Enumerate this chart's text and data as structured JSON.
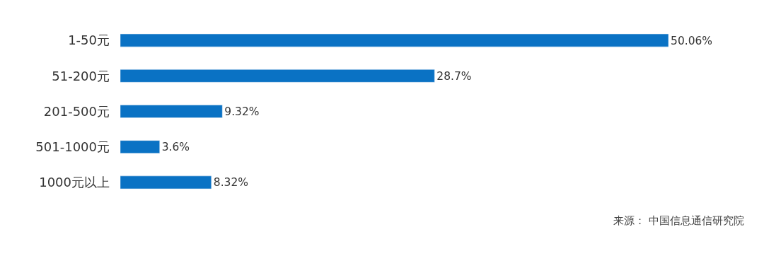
{
  "chart_data": {
    "type": "bar",
    "orientation": "horizontal",
    "categories": [
      "1-50元",
      "51-200元",
      "201-500元",
      "501-1000元",
      "1000元以上"
    ],
    "values": [
      50.06,
      28.7,
      9.32,
      3.6,
      8.32
    ],
    "value_labels": [
      "50.06%",
      "28.7%",
      "9.32%",
      "3.6%",
      "8.32%"
    ],
    "color": "#0a72c4",
    "annotations": [
      "来源： 中国信息通信研究院"
    ]
  }
}
